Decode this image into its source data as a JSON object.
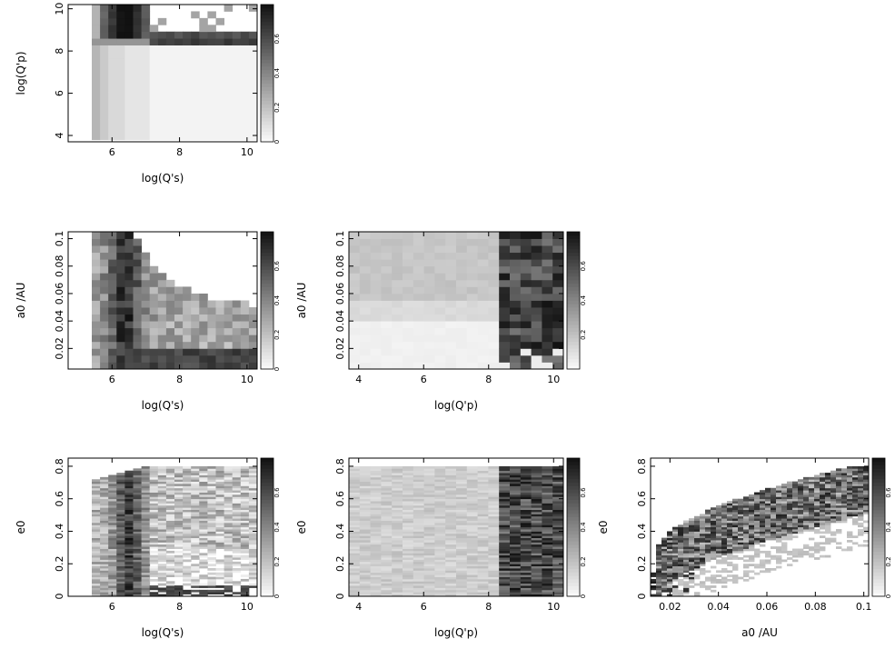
{
  "chart_data": [
    {
      "id": "p11",
      "type": "heatmap",
      "xlabel": "log(Q's)",
      "ylabel": "log(Q'p)",
      "xlim": [
        4.7,
        10.3
      ],
      "ylim": [
        3.7,
        10.2
      ],
      "xticks": [
        6,
        8,
        10
      ],
      "yticks": [
        4,
        6,
        8,
        10
      ],
      "zlim": [
        0,
        0.8
      ],
      "colorbar_ticks": [
        0,
        0.2,
        0.4,
        0.6
      ],
      "x_range": [
        5.4,
        10.3
      ],
      "y_range": [
        3.8,
        10.2
      ],
      "nx": 20,
      "ny": 20,
      "pattern": "qp_vs_qs"
    },
    {
      "id": "p21",
      "type": "heatmap",
      "xlabel": "log(Q's)",
      "ylabel": "a0 /AU",
      "xlim": [
        4.7,
        10.3
      ],
      "ylim": [
        0.005,
        0.105
      ],
      "xticks": [
        6,
        8,
        10
      ],
      "yticks": [
        0.02,
        0.04,
        0.06,
        0.08,
        0.1
      ],
      "zlim": [
        0,
        0.8
      ],
      "colorbar_ticks": [
        0,
        0.2,
        0.4,
        0.6
      ],
      "x_range": [
        5.4,
        10.3
      ],
      "y_range": [
        0.005,
        0.105
      ],
      "nx": 20,
      "ny": 20,
      "pattern": "a_vs_qs"
    },
    {
      "id": "p22",
      "type": "heatmap",
      "xlabel": "log(Q'p)",
      "ylabel": "a0 /AU",
      "xlim": [
        3.7,
        10.3
      ],
      "ylim": [
        0.005,
        0.105
      ],
      "xticks": [
        4,
        6,
        8,
        10
      ],
      "yticks": [
        0.02,
        0.04,
        0.06,
        0.08,
        0.1
      ],
      "zlim": [
        0,
        0.8
      ],
      "colorbar_ticks": [
        0.2,
        0.4,
        0.6
      ],
      "x_range": [
        3.7,
        10.3
      ],
      "y_range": [
        0.005,
        0.105
      ],
      "nx": 20,
      "ny": 20,
      "pattern": "a_vs_qp"
    },
    {
      "id": "p31",
      "type": "heatmap",
      "xlabel": "log(Q's)",
      "ylabel": "e0",
      "xlim": [
        4.7,
        10.3
      ],
      "ylim": [
        0,
        0.85
      ],
      "xticks": [
        6,
        8,
        10
      ],
      "yticks": [
        0,
        0.2,
        0.4,
        0.6,
        0.8
      ],
      "zlim": [
        0,
        0.8
      ],
      "colorbar_ticks": [
        0,
        0.2,
        0.4,
        0.6
      ],
      "x_range": [
        5.4,
        10.3
      ],
      "y_range": [
        0,
        0.8
      ],
      "nx": 20,
      "ny": 60,
      "pattern": "e_vs_qs"
    },
    {
      "id": "p32",
      "type": "heatmap",
      "xlabel": "log(Q'p)",
      "ylabel": "e0",
      "xlim": [
        3.7,
        10.3
      ],
      "ylim": [
        0,
        0.85
      ],
      "xticks": [
        4,
        6,
        8,
        10
      ],
      "yticks": [
        0,
        0.2,
        0.4,
        0.6,
        0.8
      ],
      "zlim": [
        0,
        0.8
      ],
      "colorbar_ticks": [
        0,
        0.2,
        0.4,
        0.6
      ],
      "x_range": [
        3.7,
        10.3
      ],
      "y_range": [
        0,
        0.8
      ],
      "nx": 20,
      "ny": 60,
      "pattern": "e_vs_qp"
    },
    {
      "id": "p33",
      "type": "heatmap",
      "xlabel": "a0 /AU",
      "ylabel": "e0",
      "xlim": [
        0.012,
        0.102
      ],
      "ylim": [
        0,
        0.85
      ],
      "xticks": [
        0.02,
        0.04,
        0.06,
        0.08,
        0.1
      ],
      "yticks": [
        0,
        0.2,
        0.4,
        0.6,
        0.8
      ],
      "zlim": [
        0,
        0.8
      ],
      "colorbar_ticks": [
        0,
        0.2,
        0.4,
        0.6
      ],
      "x_range": [
        0.012,
        0.102
      ],
      "y_range": [
        0,
        0.8
      ],
      "nx": 40,
      "ny": 60,
      "pattern": "e_vs_a"
    }
  ]
}
